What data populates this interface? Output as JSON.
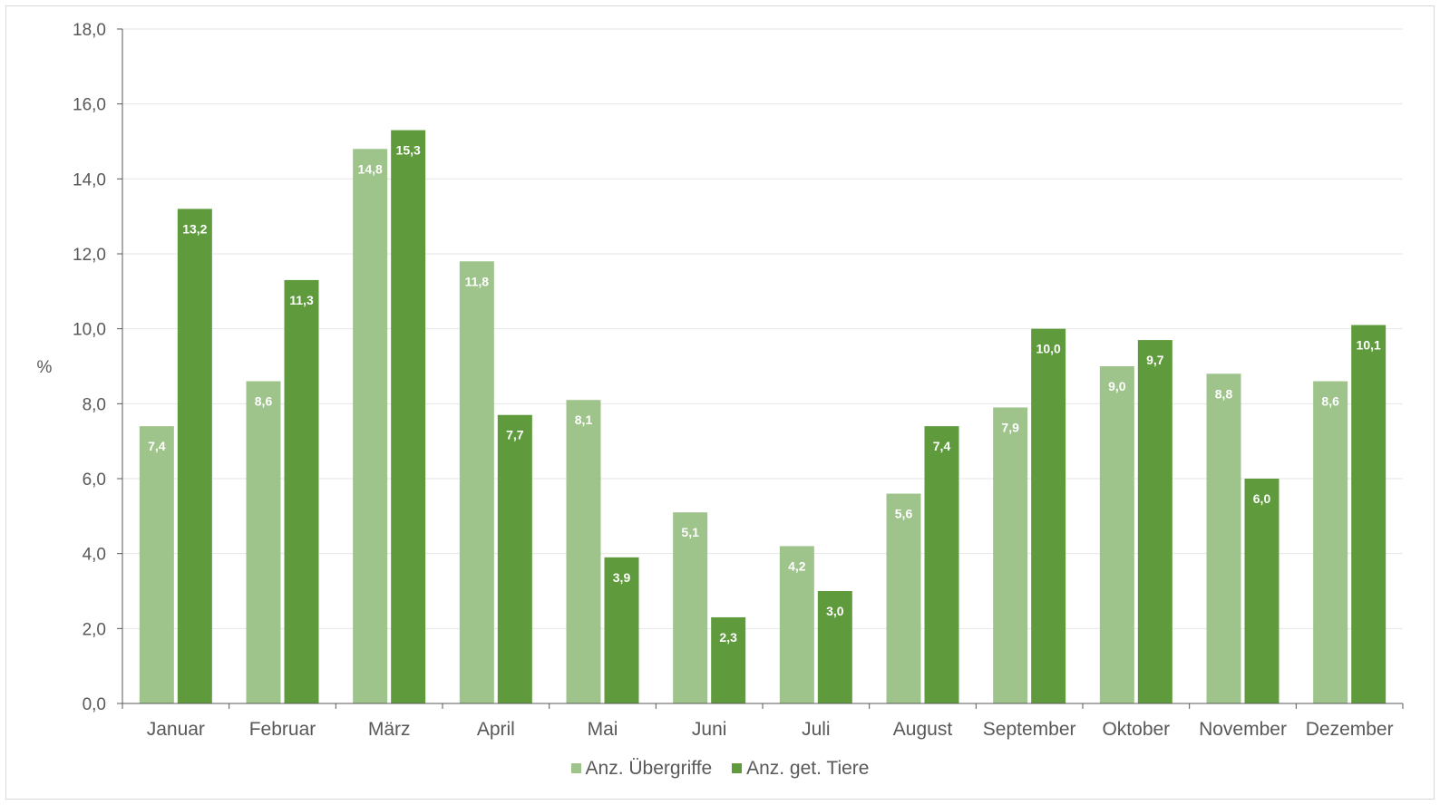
{
  "chart_data": {
    "type": "bar",
    "ylabel": "%",
    "ylim": [
      0,
      18
    ],
    "yticks": [
      "0,0",
      "2,0",
      "4,0",
      "6,0",
      "8,0",
      "10,0",
      "12,0",
      "14,0",
      "16,0",
      "18,0"
    ],
    "grid": true,
    "legend_position": "bottom",
    "categories": [
      "Januar",
      "Februar",
      "März",
      "April",
      "Mai",
      "Juni",
      "Juli",
      "August",
      "September",
      "Oktober",
      "November",
      "Dezember"
    ],
    "series": [
      {
        "name": "Anz. Übergriffe",
        "color": "#9fc48b",
        "values": [
          7.4,
          8.6,
          14.8,
          11.8,
          8.1,
          5.1,
          4.2,
          5.6,
          7.9,
          9.0,
          8.8,
          8.6
        ],
        "labels": [
          "7,4",
          "8,6",
          "14,8",
          "11,8",
          "8,1",
          "5,1",
          "4,2",
          "5,6",
          "7,9",
          "9,0",
          "8,8",
          "8,6"
        ]
      },
      {
        "name": "Anz. get. Tiere",
        "color": "#5f9b3c",
        "values": [
          13.2,
          11.3,
          15.3,
          7.7,
          3.9,
          2.3,
          3.0,
          7.4,
          10.0,
          9.7,
          6.0,
          10.1
        ],
        "labels": [
          "13,2",
          "11,3",
          "15,3",
          "7,7",
          "3,9",
          "2,3",
          "3,0",
          "7,4",
          "10,0",
          "9,7",
          "6,0",
          "10,1"
        ]
      }
    ]
  }
}
